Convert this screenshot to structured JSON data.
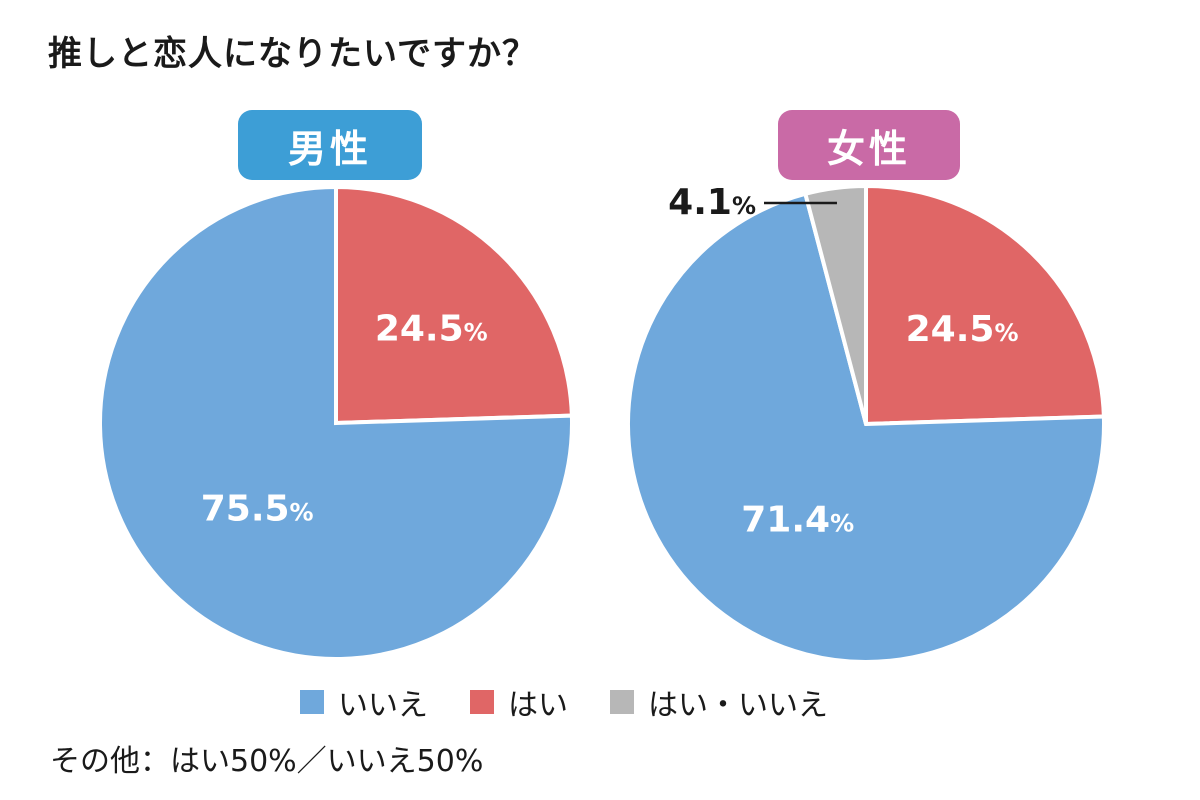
{
  "title": "推しと恋人になりたいですか？",
  "colors": {
    "iie": "#6fa8dc",
    "hai": "#e06666",
    "other": "#b7b7b7",
    "male_badge": "#3d9ed6",
    "female_badge": "#c96aa6"
  },
  "legend": {
    "items": [
      {
        "label": "いいえ",
        "color_key": "iie"
      },
      {
        "label": "はい",
        "color_key": "hai"
      },
      {
        "label": "はい・いいえ",
        "color_key": "other"
      }
    ]
  },
  "note": "その他：はい50%／いいえ50%",
  "chart_data": [
    {
      "type": "pie",
      "title": "男性",
      "slices": [
        {
          "label": "はい",
          "value": 24.5,
          "display": "24.5",
          "color_key": "hai"
        },
        {
          "label": "いいえ",
          "value": 75.5,
          "display": "75.5",
          "color_key": "iie"
        }
      ]
    },
    {
      "type": "pie",
      "title": "女性",
      "slices": [
        {
          "label": "はい",
          "value": 24.5,
          "display": "24.5",
          "color_key": "hai"
        },
        {
          "label": "いいえ",
          "value": 71.4,
          "display": "71.4",
          "color_key": "iie"
        },
        {
          "label": "はい・いいえ",
          "value": 4.1,
          "display": "4.1",
          "color_key": "other"
        }
      ]
    }
  ]
}
